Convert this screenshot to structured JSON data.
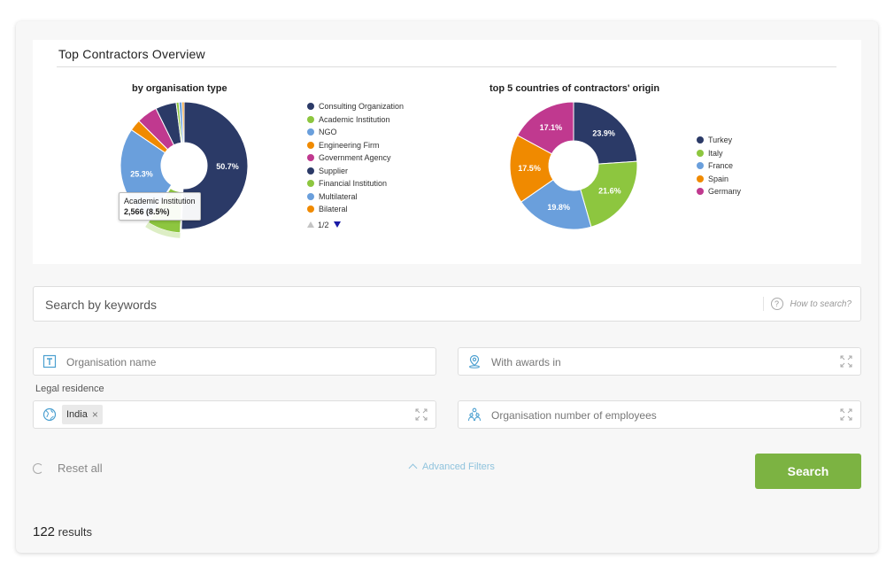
{
  "panel": {
    "title": "Top Contractors Overview"
  },
  "chart_data": [
    {
      "type": "pie",
      "title": "by organisation type",
      "donut": true,
      "legend_position": "right",
      "categories": [
        "Consulting Organization",
        "Academic Institution",
        "NGO",
        "Engineering Firm",
        "Government Agency",
        "Supplier",
        "Financial Institution",
        "Multilateral",
        "Bilateral"
      ],
      "values": [
        50.7,
        8.5,
        25.3,
        2.9,
        5.3,
        5.3,
        0.7,
        0.8,
        0.5
      ],
      "colors": [
        "#2b3a67",
        "#8dc63f",
        "#6a9fdc",
        "#f08a00",
        "#c0398f",
        "#2b3a67",
        "#8dc63f",
        "#6a9fdc",
        "#f08a00"
      ],
      "labels": [
        "50.7%",
        "",
        "25.3%",
        "",
        "",
        "",
        "",
        "",
        ""
      ],
      "legend_page": "1/2",
      "tooltip": {
        "title": "Academic Institution",
        "value": "2,566 (8.5%)"
      }
    },
    {
      "type": "pie",
      "title": "top 5 countries of contractors' origin",
      "donut": true,
      "legend_position": "right",
      "categories": [
        "Turkey",
        "Italy",
        "France",
        "Spain",
        "Germany"
      ],
      "values": [
        23.9,
        21.6,
        19.8,
        17.5,
        17.1
      ],
      "colors": [
        "#2b3a67",
        "#8dc63f",
        "#6a9fdc",
        "#f08a00",
        "#c0398f"
      ],
      "labels": [
        "23.9%",
        "21.6%",
        "19.8%",
        "17.5%",
        "17.1%"
      ]
    }
  ],
  "search": {
    "placeholder": "Search by keywords",
    "how_to": "How to search?"
  },
  "filters": {
    "org_name_placeholder": "Organisation name",
    "awards_placeholder": "With awards in",
    "legal_residence_label": "Legal residence",
    "legal_residence_chip": "India",
    "employees_placeholder": "Organisation number of employees"
  },
  "actions": {
    "reset": "Reset all",
    "advanced": "Advanced Filters",
    "search": "Search"
  },
  "results": {
    "count": "122",
    "label": "results"
  }
}
